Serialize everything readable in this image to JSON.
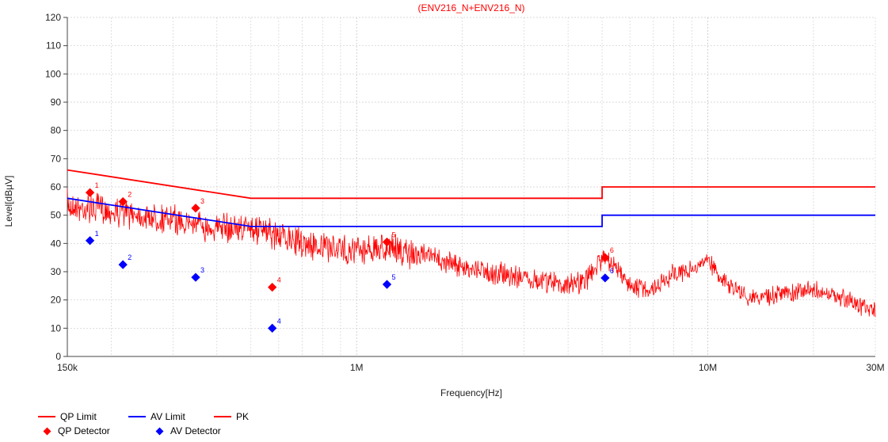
{
  "colors": {
    "qp": "#ff0000",
    "av": "#0000ff",
    "grid": "#cccccc",
    "axis": "#444444"
  },
  "chart_data": {
    "type": "line",
    "title": "(ENV216_N+ENV216_N)",
    "xlabel": "Frequency[Hz]",
    "ylabel": "Level[dBµV]",
    "xscale": "log",
    "xlim": [
      150000,
      30000000
    ],
    "ylim": [
      0,
      120
    ],
    "grid": true,
    "legend_position": "bottom-left",
    "x_tick_labels": [
      {
        "value": 150000,
        "label": "150k"
      },
      {
        "value": 1000000,
        "label": "1M"
      },
      {
        "value": 10000000,
        "label": "10M"
      },
      {
        "value": 30000000,
        "label": "30M"
      }
    ],
    "y_ticks": [
      0,
      10,
      20,
      30,
      40,
      50,
      60,
      70,
      80,
      90,
      100,
      110,
      120
    ],
    "series": [
      {
        "name": "QP Limit",
        "type": "line",
        "color": "#ff0000",
        "points": [
          [
            150000,
            66
          ],
          [
            500000,
            56
          ],
          [
            5000000,
            56
          ],
          [
            5000000,
            60
          ],
          [
            30000000,
            60
          ]
        ]
      },
      {
        "name": "AV Limit",
        "type": "line",
        "color": "#0000ff",
        "points": [
          [
            150000,
            56
          ],
          [
            500000,
            46
          ],
          [
            5000000,
            46
          ],
          [
            5000000,
            50
          ],
          [
            30000000,
            50
          ]
        ]
      },
      {
        "name": "PK",
        "type": "line",
        "color": "#ff0000",
        "envelope": [
          [
            150000,
            58
          ],
          [
            200000,
            56
          ],
          [
            300000,
            53
          ],
          [
            400000,
            50
          ],
          [
            500000,
            50
          ],
          [
            600000,
            47
          ],
          [
            800000,
            43
          ],
          [
            1000000,
            42
          ],
          [
            1200000,
            43
          ],
          [
            1500000,
            40
          ],
          [
            2000000,
            35
          ],
          [
            3000000,
            31
          ],
          [
            4000000,
            29
          ],
          [
            4500000,
            31
          ],
          [
            5000000,
            38
          ],
          [
            5500000,
            34
          ],
          [
            6000000,
            27
          ],
          [
            7000000,
            26
          ],
          [
            8000000,
            32
          ],
          [
            9000000,
            33
          ],
          [
            10000000,
            36
          ],
          [
            11000000,
            30
          ],
          [
            13000000,
            24
          ],
          [
            15000000,
            24
          ],
          [
            20000000,
            26
          ],
          [
            25000000,
            23
          ],
          [
            30000000,
            18
          ]
        ]
      },
      {
        "name": "QP Detector",
        "type": "scatter",
        "color": "#ff0000",
        "points": [
          {
            "x": 174000,
            "y": 58.0,
            "label": "1"
          },
          {
            "x": 216000,
            "y": 54.8,
            "label": "2"
          },
          {
            "x": 348000,
            "y": 52.5,
            "label": "3"
          },
          {
            "x": 575000,
            "y": 24.5,
            "label": "4"
          },
          {
            "x": 1220000,
            "y": 40.5,
            "label": "5"
          },
          {
            "x": 5100000,
            "y": 35.0,
            "label": "6"
          }
        ]
      },
      {
        "name": "AV Detector",
        "type": "scatter",
        "color": "#0000ff",
        "points": [
          {
            "x": 174000,
            "y": 41.0,
            "label": "1"
          },
          {
            "x": 216000,
            "y": 32.5,
            "label": "2"
          },
          {
            "x": 348000,
            "y": 28.0,
            "label": "3"
          },
          {
            "x": 575000,
            "y": 10.0,
            "label": "4"
          },
          {
            "x": 1220000,
            "y": 25.5,
            "label": "5"
          },
          {
            "x": 5100000,
            "y": 27.8,
            "label": "6"
          }
        ]
      }
    ]
  },
  "legend": [
    {
      "label": "QP Limit",
      "kind": "line",
      "color": "#ff0000"
    },
    {
      "label": "AV Limit",
      "kind": "line",
      "color": "#0000ff"
    },
    {
      "label": "PK",
      "kind": "line",
      "color": "#ff0000"
    },
    {
      "label": "QP Detector",
      "kind": "diamond",
      "color": "#ff0000"
    },
    {
      "label": "AV Detector",
      "kind": "diamond",
      "color": "#0000ff"
    }
  ]
}
